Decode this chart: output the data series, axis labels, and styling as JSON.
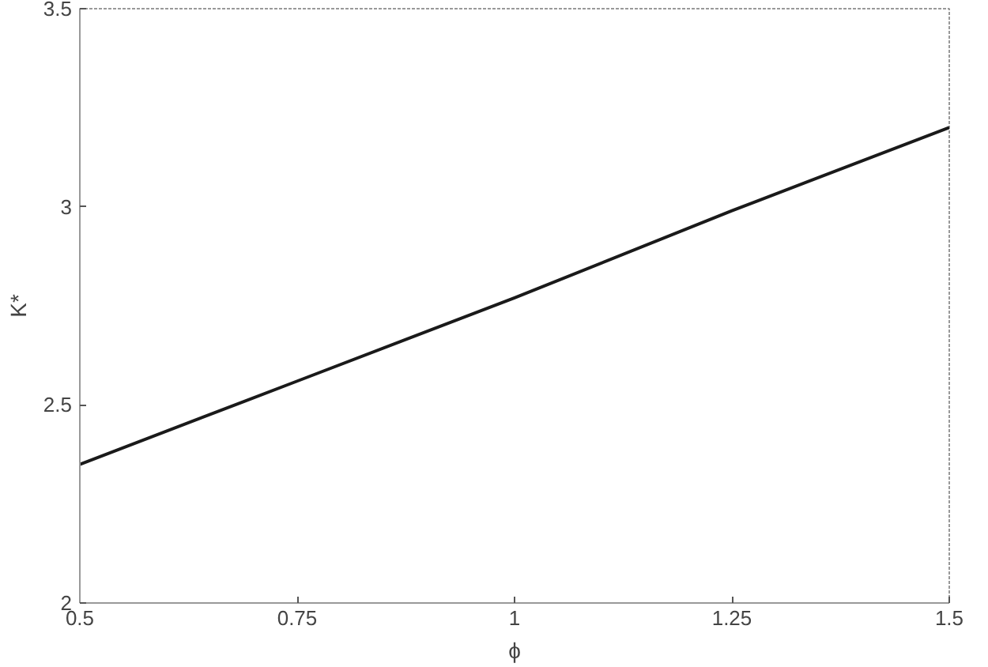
{
  "chart_data": {
    "type": "line",
    "xlabel": "ϕ",
    "ylabel": "K*",
    "x": [
      0.5,
      0.75,
      1,
      1.25,
      1.5
    ],
    "series": [
      {
        "color": "#1a1a1a",
        "values": [
          2.35,
          2.56,
          2.77,
          2.99,
          3.2
        ]
      }
    ],
    "xlim": [
      0.5,
      1.5
    ],
    "ylim": [
      2,
      3.5
    ],
    "xticks": [
      0.5,
      0.75,
      1,
      1.25,
      1.5
    ],
    "yticks": [
      2,
      2.5,
      3,
      3.5
    ],
    "grid": false,
    "marker": "none",
    "line_style": "solid"
  }
}
